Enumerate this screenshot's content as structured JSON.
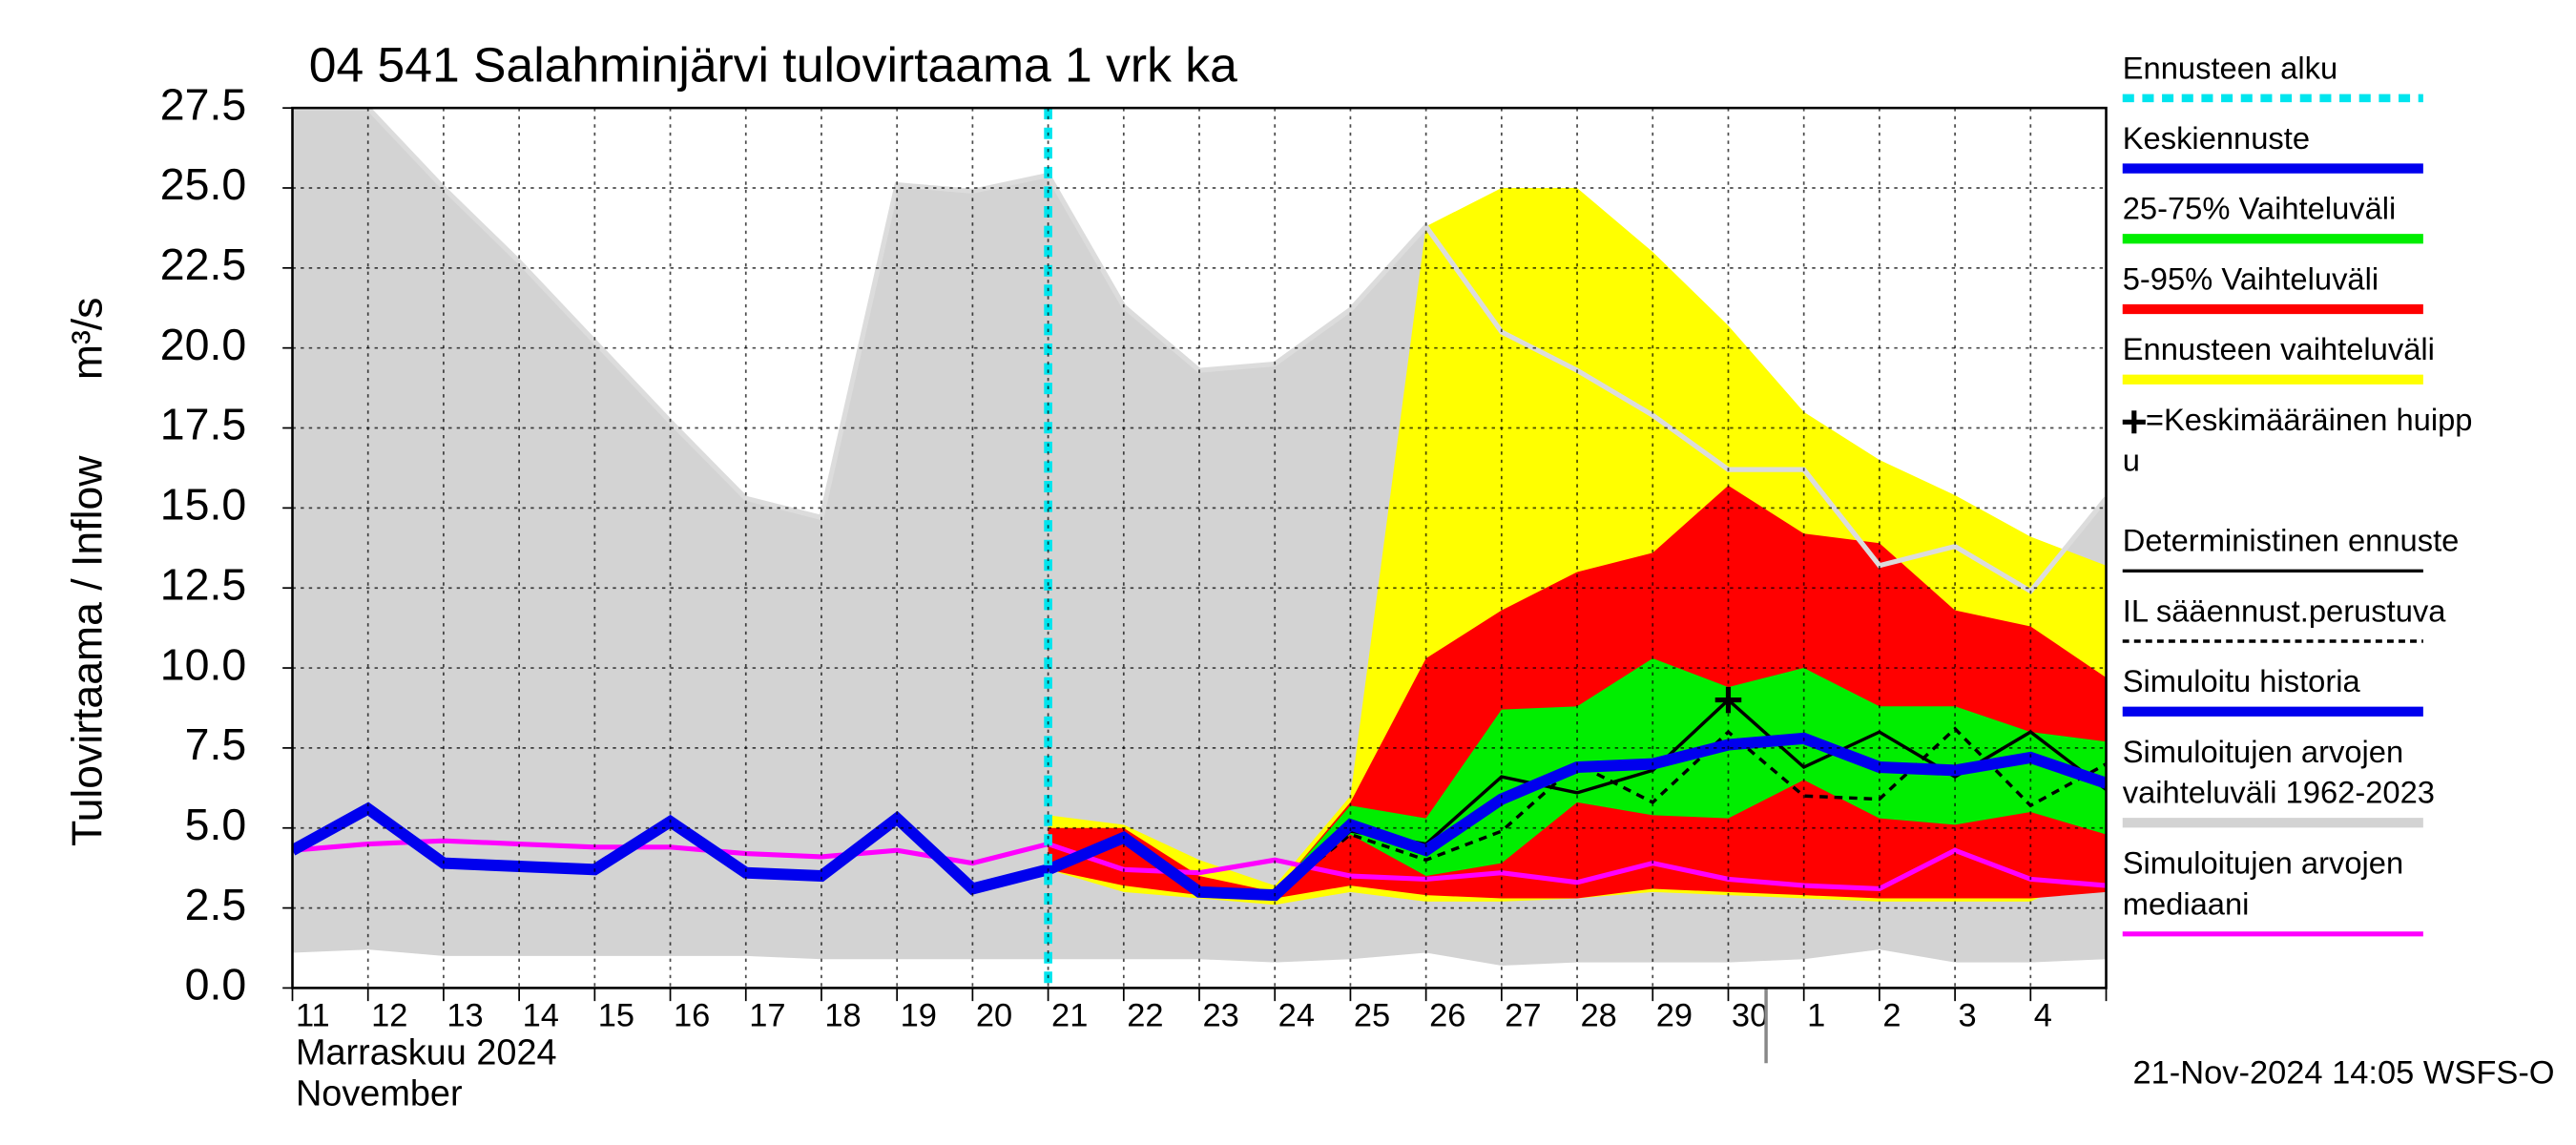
{
  "chart_data": {
    "type": "line",
    "title": "04 541 Salahminjärvi tulovirtaama 1 vrk ka",
    "y_label": "Tulovirtaama / Inflow",
    "y_unit": "m³/s",
    "x_label": [
      "Marraskuu 2024",
      "November"
    ],
    "footer": "21-Nov-2024 14:05 WSFS-O",
    "grid": true,
    "legend": "right",
    "categories": [
      "11",
      "12",
      "13",
      "14",
      "15",
      "16",
      "17",
      "18",
      "19",
      "20",
      "21",
      "22",
      "23",
      "24",
      "25",
      "26",
      "27",
      "28",
      "29",
      "30",
      "1",
      "2",
      "3",
      "4",
      null
    ],
    "month_start": "1",
    "ylim": [
      0,
      27.5
    ],
    "yticks": [
      {
        "value": 0,
        "label": "0.0"
      },
      2.5,
      {
        "value": 5,
        "label": "5.0"
      },
      7.5,
      {
        "value": 10,
        "label": "10.0"
      },
      12.5,
      {
        "value": 15,
        "label": "15.0"
      },
      17.5,
      {
        "value": 20,
        "label": "20.0"
      },
      22.5,
      {
        "value": 25,
        "label": "25.0"
      },
      27.5
    ],
    "series": [
      {
        "name": [
          "Ennusteen alku"
        ],
        "kind": "vline",
        "style": "dashed",
        "color": "#00e5ee",
        "x": "21"
      },
      {
        "name": [
          "Keskiennuste"
        ],
        "kind": "line",
        "style": "thick",
        "color": "#0000ee",
        "values": [
          null,
          null,
          null,
          null,
          null,
          null,
          null,
          null,
          null,
          null,
          3.7,
          4.7,
          3.0,
          2.9,
          5.1,
          4.3,
          5.9,
          6.9,
          7.0,
          7.6,
          7.8,
          6.9,
          6.8,
          7.2,
          6.4
        ]
      },
      {
        "name": [
          "25-75% Vaihteluväli"
        ],
        "kind": "band",
        "color": "#00ee00",
        "values": [
          null,
          null,
          null,
          null,
          null,
          null,
          null,
          null,
          null,
          null,
          3.8,
          4.6,
          3.0,
          3.0,
          5.7,
          5.3,
          8.7,
          8.8,
          10.3,
          9.4,
          10.0,
          8.8,
          8.8,
          8.0,
          7.7
        ],
        "lower": [
          null,
          null,
          null,
          null,
          null,
          null,
          null,
          null,
          null,
          null,
          3.7,
          4.5,
          3.0,
          2.9,
          4.8,
          3.5,
          3.9,
          5.8,
          5.4,
          5.3,
          6.5,
          5.3,
          5.1,
          5.5,
          4.8
        ]
      },
      {
        "name": [
          "5-95% Vaihteluväli"
        ],
        "kind": "band",
        "color": "#ff0000",
        "values": [
          null,
          null,
          null,
          null,
          null,
          null,
          null,
          null,
          null,
          null,
          5.0,
          5.0,
          3.5,
          3.0,
          5.8,
          10.3,
          11.8,
          13.0,
          13.6,
          15.7,
          14.2,
          13.9,
          11.8,
          11.3,
          9.7
        ],
        "lower": [
          null,
          null,
          null,
          null,
          null,
          null,
          null,
          null,
          null,
          null,
          3.7,
          3.2,
          2.9,
          2.8,
          3.2,
          2.9,
          2.8,
          2.8,
          3.1,
          3.0,
          2.9,
          2.8,
          2.8,
          2.8,
          3.0
        ]
      },
      {
        "name": [
          "Ennusteen vaihteluväli"
        ],
        "kind": "band",
        "color": "#ffff00",
        "values": [
          null,
          null,
          null,
          null,
          null,
          null,
          null,
          null,
          null,
          null,
          5.4,
          5.1,
          4.0,
          3.2,
          6.0,
          23.8,
          25.0,
          25.0,
          23.0,
          20.7,
          18.0,
          16.5,
          15.4,
          14.1,
          13.2
        ],
        "lower": [
          null,
          null,
          null,
          null,
          null,
          null,
          null,
          null,
          null,
          null,
          3.7,
          3.0,
          2.8,
          2.6,
          3.0,
          2.7,
          2.7,
          2.8,
          3.0,
          2.9,
          2.8,
          2.7,
          2.7,
          2.7,
          3.8
        ]
      },
      {
        "name": [
          "=Keskimääräinen huipp",
          "u"
        ],
        "kind": "marker",
        "color": "#000000",
        "x": "30",
        "value": 9.0
      },
      {
        "name": [
          "Deterministinen ennuste"
        ],
        "kind": "line",
        "style": "thin",
        "color": "#000000",
        "values": [
          null,
          null,
          null,
          null,
          null,
          null,
          null,
          null,
          null,
          null,
          3.7,
          4.8,
          3.0,
          2.9,
          4.9,
          4.5,
          6.6,
          6.1,
          6.8,
          9.0,
          6.9,
          8.0,
          6.6,
          8.0,
          6.2
        ]
      },
      {
        "name": [
          "IL sääennust.perustuva"
        ],
        "kind": "line",
        "style": "dashed",
        "color": "#000000",
        "values": [
          null,
          null,
          null,
          null,
          null,
          null,
          null,
          null,
          null,
          null,
          3.7,
          4.8,
          3.0,
          2.9,
          4.8,
          4.0,
          4.9,
          7.0,
          5.8,
          8.0,
          6.0,
          5.9,
          8.1,
          5.7,
          7.0
        ]
      },
      {
        "name": [
          "Simuloitu historia"
        ],
        "kind": "line",
        "style": "thick",
        "color": "#0000ee",
        "values": [
          4.3,
          5.6,
          3.9,
          3.8,
          3.7,
          5.2,
          3.6,
          3.5,
          5.3,
          3.1,
          3.7,
          null,
          null,
          null,
          null,
          null,
          null,
          null,
          null,
          null,
          null,
          null,
          null,
          null,
          null
        ]
      },
      {
        "name": [
          "Simuloitujen arvojen",
          "vaihteluväli 1962-2023"
        ],
        "kind": "band",
        "color": "#d3d3d3",
        "values": [
          27.5,
          27.5,
          25.0,
          22.7,
          20.2,
          17.7,
          15.3,
          14.7,
          25.1,
          24.9,
          25.4,
          21.3,
          19.3,
          19.5,
          21.2,
          23.8,
          20.5,
          19.3,
          17.9,
          16.2,
          16.2,
          13.2,
          13.8,
          12.4,
          15.3
        ],
        "lower": [
          1.1,
          1.2,
          1.0,
          1.0,
          1.0,
          1.0,
          1.0,
          0.9,
          0.9,
          0.9,
          0.9,
          0.9,
          0.9,
          0.8,
          0.9,
          1.1,
          0.7,
          0.8,
          0.8,
          0.8,
          0.9,
          1.2,
          0.8,
          0.8,
          0.9
        ]
      },
      {
        "name": [
          "Simuloitujen arvojen",
          "mediaani"
        ],
        "kind": "line",
        "style": "medium",
        "color": "#ff00ff",
        "values": [
          4.3,
          4.5,
          4.6,
          4.5,
          4.4,
          4.4,
          4.2,
          4.1,
          4.3,
          3.9,
          4.5,
          3.7,
          3.6,
          4.0,
          3.5,
          3.4,
          3.6,
          3.3,
          3.9,
          3.4,
          3.2,
          3.1,
          4.3,
          3.4,
          3.2
        ]
      }
    ]
  }
}
